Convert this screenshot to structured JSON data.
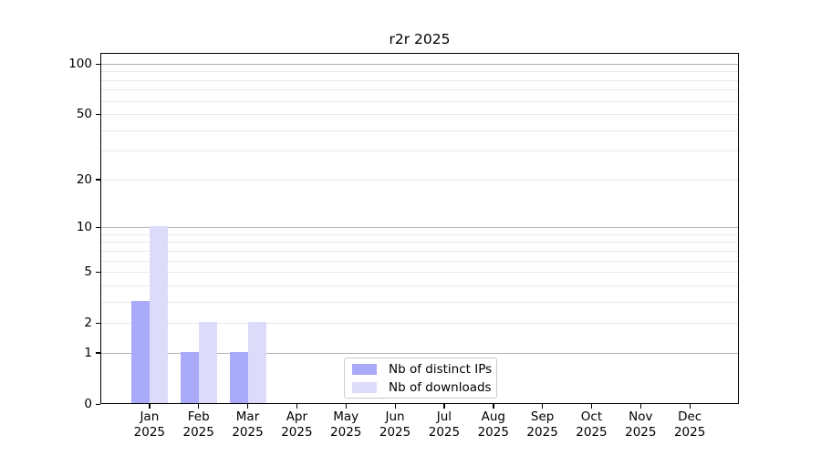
{
  "chart_data": {
    "type": "bar",
    "title": "r2r 2025",
    "categories": [
      "Jan",
      "Feb",
      "Mar",
      "Apr",
      "May",
      "Jun",
      "Jul",
      "Aug",
      "Sep",
      "Oct",
      "Nov",
      "Dec"
    ],
    "x_tick_year": "2025",
    "series": [
      {
        "name": "Nb of distinct IPs",
        "color": "#aaaafa",
        "values": [
          3,
          1,
          1,
          0,
          0,
          0,
          0,
          0,
          0,
          0,
          0,
          0
        ]
      },
      {
        "name": "Nb of downloads",
        "color": "#dcdcfa",
        "values": [
          10,
          2,
          2,
          0,
          0,
          0,
          0,
          0,
          0,
          0,
          0,
          0
        ]
      }
    ],
    "y_scale": "log1p",
    "ylim": [
      0,
      117
    ],
    "y_ticks": [
      0,
      1,
      2,
      5,
      10,
      20,
      50,
      100
    ],
    "y_major_gridlines": [
      1,
      10,
      100
    ],
    "y_minor_gridlines": [
      2,
      3,
      4,
      5,
      6,
      7,
      8,
      9,
      20,
      30,
      40,
      50,
      60,
      70,
      80,
      90
    ],
    "grid": true,
    "legend_position": "lower center"
  },
  "colors": {
    "background": "#ffffff",
    "axis": "#000000",
    "major_grid": "#b3b3b3",
    "minor_grid": "#e9e9e9",
    "legend_border": "#cccccc",
    "text": "#000000"
  }
}
